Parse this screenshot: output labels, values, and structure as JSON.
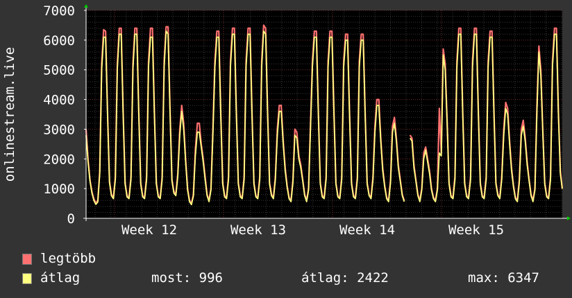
{
  "chart_data": {
    "type": "line",
    "ylabel": "onlinestream.live",
    "ylim": [
      0,
      7000
    ],
    "y_ticks": [
      0,
      1000,
      2000,
      3000,
      4000,
      5000,
      6000,
      7000
    ],
    "y_tick_labels": [
      "0",
      "1000",
      "2000",
      "3000",
      "4000",
      "5000",
      "6000",
      "7000"
    ],
    "x_ticks": [
      "Week 12",
      "Week 13",
      "Week 14",
      "Week 15"
    ],
    "grid": true,
    "colors": {
      "background": "#333333",
      "plot_background": "#000000",
      "grid_minor": "#3a3a3a",
      "grid_major": "#7a3030",
      "axis": "#ffffff",
      "text": "#ffffff",
      "arrow": "#00cc00",
      "max_series": "#ff6b6b",
      "avg_series": "#ffff80"
    },
    "series": [
      {
        "name": "legtöbb",
        "color": "#ff7070",
        "values": [
          3000,
          2000,
          1300,
          900,
          650,
          520,
          600,
          1600,
          5200,
          6350,
          6300,
          3600,
          1250,
          800,
          700,
          1400,
          5200,
          6400,
          6400,
          3600,
          1200,
          760,
          700,
          1400,
          5200,
          6400,
          6400,
          3600,
          1200,
          760,
          700,
          1400,
          5300,
          6400,
          6400,
          3600,
          1200,
          760,
          700,
          1400,
          5300,
          6450,
          6450,
          3700,
          1300,
          900,
          800,
          1500,
          3000,
          3800,
          3200,
          2000,
          1000,
          600,
          500,
          800,
          2300,
          3200,
          3200,
          2500,
          2000,
          1400,
          800,
          600,
          1000,
          3000,
          5300,
          6300,
          6300,
          3600,
          1200,
          760,
          700,
          1400,
          5300,
          6400,
          6400,
          3600,
          1200,
          760,
          700,
          1400,
          5300,
          6400,
          6400,
          3600,
          1200,
          760,
          700,
          1400,
          5300,
          6500,
          6400,
          3600,
          1200,
          800,
          700,
          1400,
          3000,
          3800,
          3800,
          2600,
          1700,
          1100,
          700,
          600,
          1300,
          3000,
          2900,
          2100,
          1800,
          1300,
          800,
          600,
          1000,
          3200,
          5300,
          6300,
          6300,
          3600,
          1200,
          760,
          700,
          1400,
          5300,
          6300,
          6300,
          3600,
          1200,
          760,
          700,
          1400,
          5300,
          6200,
          6200,
          3600,
          1200,
          760,
          700,
          1400,
          5300,
          6200,
          6200,
          3600,
          1200,
          800,
          700,
          1400,
          3100,
          4000,
          4000,
          2700,
          1700,
          1100,
          700,
          600,
          1300,
          3100,
          3400,
          2700,
          1800,
          1300,
          800,
          600,
          null,
          null,
          2800,
          2700,
          1800,
          1300,
          800,
          600,
          1000,
          2200,
          2400,
          2000,
          1600,
          1000,
          700,
          600,
          1000,
          3700,
          2200,
          5700,
          5200,
          3300,
          1200,
          760,
          700,
          1400,
          5300,
          6400,
          6400,
          3600,
          1200,
          760,
          700,
          1400,
          5300,
          6400,
          6400,
          3600,
          1200,
          760,
          700,
          1400,
          5300,
          6300,
          6300,
          3600,
          1200,
          800,
          700,
          1400,
          3000,
          3900,
          3700,
          2600,
          1700,
          1100,
          700,
          600,
          1300,
          3000,
          3300,
          2700,
          1900,
          1300,
          800,
          600,
          1000,
          3800,
          5800,
          5000,
          3000,
          1200,
          760,
          700,
          1400,
          5300,
          6400,
          6400,
          3600,
          1600,
          996
        ]
      },
      {
        "name": "átlag",
        "color": "#ffff80",
        "values": [
          2800,
          1900,
          1250,
          850,
          600,
          470,
          550,
          1500,
          5000,
          6100,
          6100,
          3500,
          1200,
          760,
          660,
          1300,
          5000,
          6200,
          6200,
          3500,
          1150,
          720,
          660,
          1300,
          5000,
          6200,
          6200,
          3500,
          1150,
          720,
          660,
          1300,
          5100,
          6100,
          6100,
          3500,
          1150,
          720,
          660,
          1300,
          5100,
          6300,
          6200,
          3600,
          1250,
          850,
          760,
          1400,
          2800,
          3600,
          3000,
          1900,
          950,
          560,
          460,
          750,
          2100,
          2900,
          2900,
          2400,
          1900,
          1300,
          760,
          560,
          950,
          2800,
          5100,
          6100,
          6100,
          3500,
          1150,
          720,
          660,
          1300,
          5100,
          6200,
          6200,
          3500,
          1150,
          720,
          660,
          1300,
          5100,
          6200,
          6200,
          3500,
          1150,
          720,
          660,
          1300,
          5100,
          6300,
          6200,
          3500,
          1150,
          760,
          660,
          1300,
          2800,
          3600,
          3600,
          2500,
          1600,
          1050,
          660,
          560,
          1200,
          2800,
          2700,
          2000,
          1700,
          1250,
          760,
          560,
          950,
          3000,
          5100,
          6100,
          6100,
          3500,
          1150,
          720,
          660,
          1300,
          5100,
          6100,
          6100,
          3500,
          1150,
          720,
          660,
          1300,
          5100,
          6000,
          6000,
          3500,
          1150,
          720,
          660,
          1300,
          5100,
          6000,
          6000,
          3500,
          1150,
          760,
          660,
          1300,
          2900,
          3800,
          3800,
          2600,
          1600,
          1050,
          660,
          560,
          1200,
          2900,
          3200,
          2600,
          1700,
          1250,
          760,
          560,
          null,
          null,
          2700,
          2600,
          1700,
          1250,
          760,
          560,
          950,
          2000,
          2300,
          1900,
          1500,
          950,
          660,
          560,
          950,
          2200,
          2100,
          5500,
          5000,
          3200,
          1150,
          720,
          660,
          1300,
          5100,
          6200,
          6200,
          3500,
          1150,
          720,
          660,
          1300,
          5100,
          6200,
          6200,
          3500,
          1150,
          720,
          660,
          1300,
          5100,
          6100,
          6100,
          3500,
          1150,
          760,
          660,
          1300,
          2800,
          3700,
          3500,
          2500,
          1600,
          1050,
          660,
          560,
          1200,
          2800,
          3100,
          2600,
          1800,
          1250,
          760,
          560,
          950,
          3600,
          5600,
          4800,
          2900,
          1150,
          720,
          660,
          1300,
          5100,
          6200,
          6200,
          3500,
          1500,
          996
        ]
      }
    ]
  },
  "legend": {
    "max_label": "legtöbb",
    "avg_label": "átlag"
  },
  "stats": {
    "current": "most: 996",
    "average": "átlag: 2422",
    "maximum": "max: 6347"
  }
}
